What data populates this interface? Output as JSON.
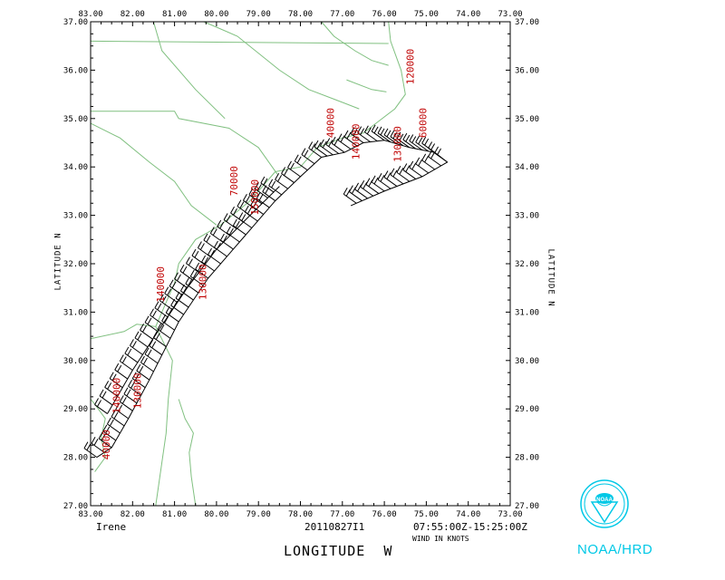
{
  "map": {
    "storm_name": "Irene",
    "flight_id": "20110827I1",
    "time_range": "07:55:00Z-15:25:00Z",
    "wind_units_note": "WIND IN KNOTS",
    "xlabel": "LONGITUDE  W",
    "ylabel_left": "LATITUDE  N",
    "ylabel_right": "LATITUDE  N",
    "x_ticks": [
      "83.00",
      "82.00",
      "81.00",
      "80.00",
      "79.00",
      "78.00",
      "77.00",
      "76.00",
      "75.00",
      "74.00",
      "73.00"
    ],
    "y_ticks": [
      "37.00",
      "36.00",
      "35.00",
      "34.00",
      "33.00",
      "32.00",
      "31.00",
      "30.00",
      "29.00",
      "28.00",
      "27.00"
    ],
    "lon_range": [
      -83,
      -73
    ],
    "lat_range": [
      27,
      37
    ],
    "colors": {
      "coast": "#80c080",
      "track": "#000000",
      "labels": "#c00000",
      "logo": "#00c8e6"
    },
    "altitude_labels": [
      "40000",
      "140000",
      "130000",
      "140000",
      "130000",
      "70000",
      "150000",
      "40000",
      "140000",
      "130000",
      "120000",
      "60000"
    ]
  },
  "logo": {
    "org_label": "NOAA/HRD",
    "badge_text": "NOAA"
  }
}
